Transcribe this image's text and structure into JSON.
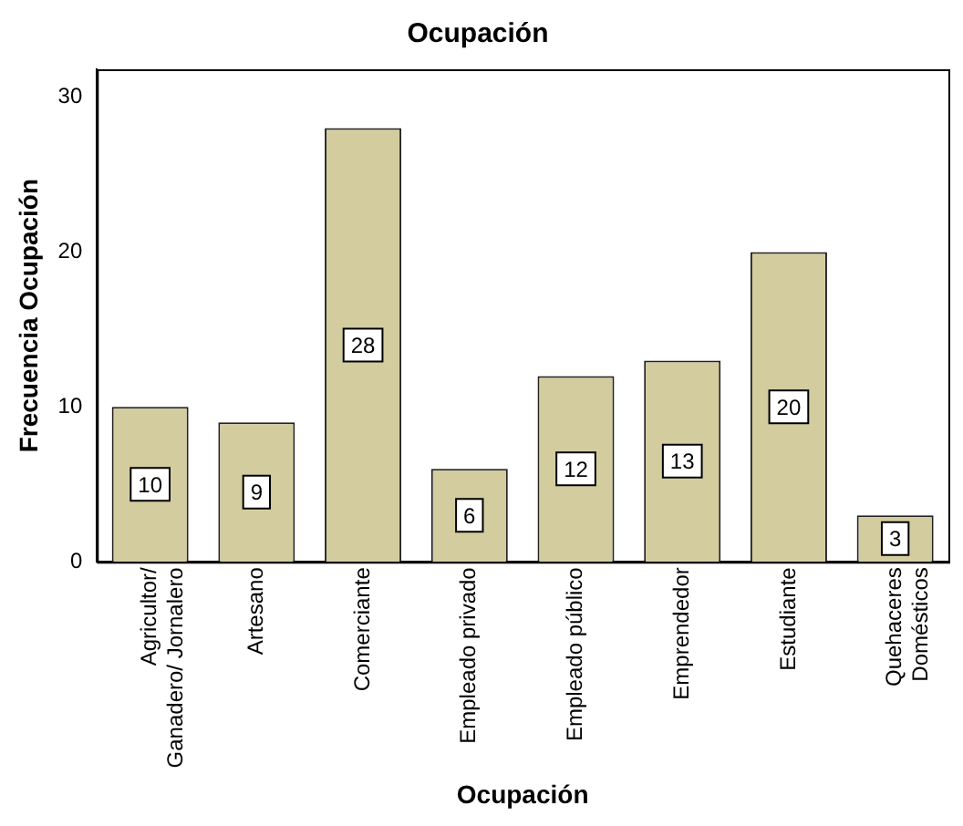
{
  "chart_data": {
    "type": "bar",
    "title": "Ocupación",
    "xlabel": "Ocupación",
    "ylabel": "Frecuencia Ocupación",
    "categories": [
      "Agricultor/ Ganadero/ Jornalero",
      "Artesano",
      "Comerciante",
      "Empleado privado",
      "Empleado público",
      "Emprendedor",
      "Estudiante",
      "Quehaceres Domésticos"
    ],
    "values": [
      10,
      9,
      28,
      6,
      12,
      13,
      20,
      3
    ],
    "color": "#d3cc9e",
    "ylim": [
      0,
      31.8
    ],
    "yticks": [
      0,
      10,
      20,
      30
    ],
    "grid": false,
    "legend": false,
    "data_labels": true
  }
}
